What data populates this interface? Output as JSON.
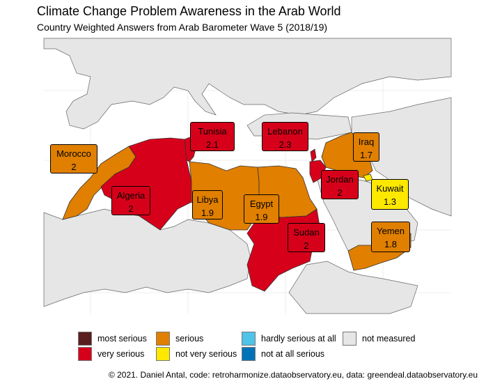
{
  "title": "Climate Change Problem Awareness in the Arab World",
  "subtitle": "Country Weighted Answers from Arab Barometer Wave 5 (2018/19)",
  "caption": "© 2021. Daniel Antal, code: retroharmonize.dataobservatory.eu, data: greendeal.dataobservatory.eu",
  "colors": {
    "most_serious": "#5a1e1e",
    "very_serious": "#d7001a",
    "serious": "#e07f00",
    "not_very_serious": "#fde800",
    "hardly_serious": "#4fc3e8",
    "not_at_all_serious": "#0073b8",
    "not_measured": "#e6e6e6",
    "sea": "#ffffff",
    "border": "#555555"
  },
  "legend": [
    {
      "key": "most_serious",
      "label": "most serious"
    },
    {
      "key": "very_serious",
      "label": "very serious"
    },
    {
      "key": "serious",
      "label": "serious"
    },
    {
      "key": "not_very_serious",
      "label": "not very serious"
    },
    {
      "key": "hardly_serious",
      "label": "hardly serious at all"
    },
    {
      "key": "not_at_all_serious",
      "label": "not at all serious"
    },
    {
      "key": "not_measured",
      "label": "not measured"
    }
  ],
  "countries": [
    {
      "name": "Tunisia",
      "value": "2.1",
      "category": "very_serious"
    },
    {
      "name": "Lebanon",
      "value": "2.3",
      "category": "very_serious"
    },
    {
      "name": "Morocco",
      "value": "2",
      "category": "serious"
    },
    {
      "name": "Iraq",
      "value": "1.7",
      "category": "serious"
    },
    {
      "name": "Algeria",
      "value": "2",
      "category": "very_serious"
    },
    {
      "name": "Jordan",
      "value": "2",
      "category": "very_serious"
    },
    {
      "name": "Kuwait",
      "value": "1.3",
      "category": "not_very_serious"
    },
    {
      "name": "Libya",
      "value": "1.9",
      "category": "serious"
    },
    {
      "name": "Egypt",
      "value": "1.9",
      "category": "serious"
    },
    {
      "name": "Sudan",
      "value": "2",
      "category": "very_serious"
    },
    {
      "name": "Yemen",
      "value": "1.8",
      "category": "serious"
    }
  ]
}
